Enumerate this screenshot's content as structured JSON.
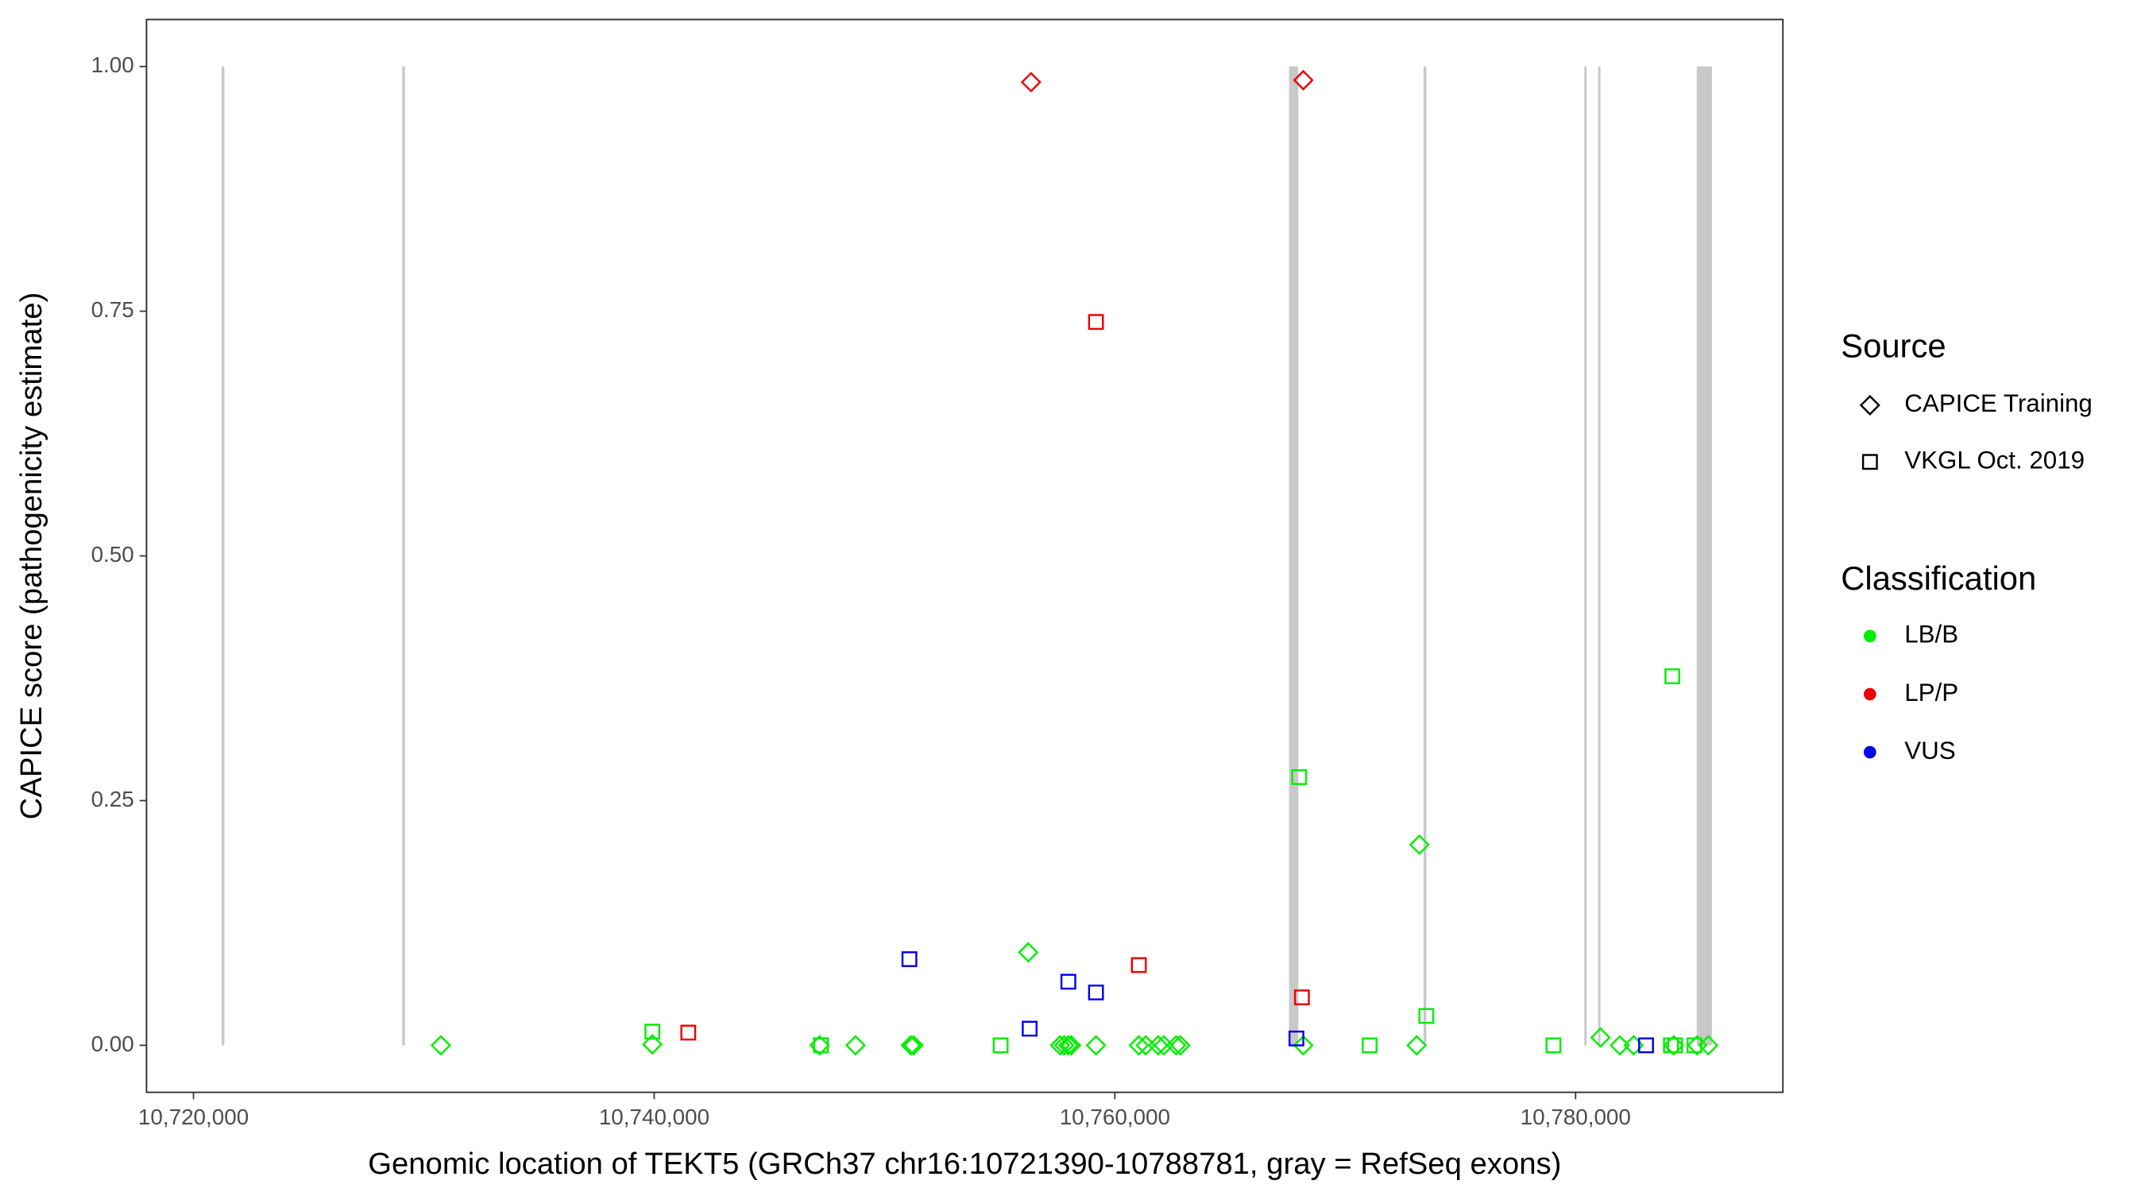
{
  "chart_data": {
    "type": "scatter",
    "xlabel": "Genomic location of TEKT5 (GRCh37 chr16:10721390-10788781, gray = RefSeq exons)",
    "ylabel": "CAPICE score (pathogenicity estimate)",
    "xlim": [
      10717960,
      10789000
    ],
    "ylim": [
      -0.048,
      1.048
    ],
    "xticks": [
      {
        "value": 10720000,
        "label": "10,720,000"
      },
      {
        "value": 10740000,
        "label": "10,740,000"
      },
      {
        "value": 10760000,
        "label": "10,760,000"
      },
      {
        "value": 10780000,
        "label": "10,780,000"
      }
    ],
    "yticks": [
      {
        "value": 0,
        "label": "0.00"
      },
      {
        "value": 0.25,
        "label": "0.25"
      },
      {
        "value": 0.5,
        "label": "0.50"
      },
      {
        "value": 0.75,
        "label": "0.75"
      },
      {
        "value": 1,
        "label": "1.00"
      }
    ],
    "exon_color": "#c8c8c8",
    "exons": [
      [
        10721220,
        10721340
      ],
      [
        10729060,
        10729180
      ],
      [
        10767560,
        10767960
      ],
      [
        10773400,
        10773520
      ],
      [
        10780380,
        10780480
      ],
      [
        10780980,
        10781080
      ],
      [
        10785260,
        10785920
      ]
    ],
    "legend": {
      "source_title": "Source",
      "source": [
        {
          "name": "CAPICE Training",
          "shape": "diamond"
        },
        {
          "name": "VKGL Oct. 2019",
          "shape": "square"
        }
      ],
      "classification_title": "Classification",
      "classification": [
        {
          "name": "LB/B",
          "color": "#00ee00"
        },
        {
          "name": "LP/P",
          "color": "#ee0000"
        },
        {
          "name": "VUS",
          "color": "#0000ee"
        }
      ]
    },
    "series": [
      {
        "source": "CAPICE Training",
        "classification": "LB/B",
        "x": [
          10730740,
          10739920,
          10747180,
          10748740,
          10751140,
          10751260,
          10756240,
          10757620,
          10757800,
          10757980,
          10758100,
          10759180,
          10761040,
          10761340,
          10761880,
          10762120,
          10762660,
          10762840,
          10768180,
          10773100,
          10773220,
          10781080,
          10781920,
          10782520,
          10784260,
          10785280,
          10785760
        ],
        "y": [
          0,
          0.001,
          0,
          0,
          0,
          0,
          0.095,
          0,
          0,
          0,
          0,
          0,
          0,
          0,
          0,
          0,
          0,
          0,
          0,
          0,
          0.205,
          0.008,
          0,
          0,
          0,
          0,
          0
        ]
      },
      {
        "source": "CAPICE Training",
        "classification": "LP/P",
        "x": [
          10756360,
          10768180
        ],
        "y": [
          0.984,
          0.986
        ]
      },
      {
        "source": "VKGL Oct. 2019",
        "classification": "LB/B",
        "x": [
          10739920,
          10747240,
          10755040,
          10768000,
          10771060,
          10773520,
          10779040,
          10784200,
          10784140,
          10784320,
          10785160
        ],
        "y": [
          0.014,
          0,
          0,
          0.274,
          0,
          0.03,
          0,
          0.377,
          0,
          0,
          0
        ]
      },
      {
        "source": "VKGL Oct. 2019",
        "classification": "LP/P",
        "x": [
          10741480,
          10759180,
          10761040,
          10768120
        ],
        "y": [
          0.013,
          0.739,
          0.082,
          0.049
        ]
      },
      {
        "source": "VKGL Oct. 2019",
        "classification": "VUS",
        "x": [
          10751080,
          10756300,
          10757980,
          10759180,
          10767880,
          10783060
        ],
        "y": [
          0.088,
          0.017,
          0.065,
          0.054,
          0.007,
          0
        ]
      }
    ]
  }
}
